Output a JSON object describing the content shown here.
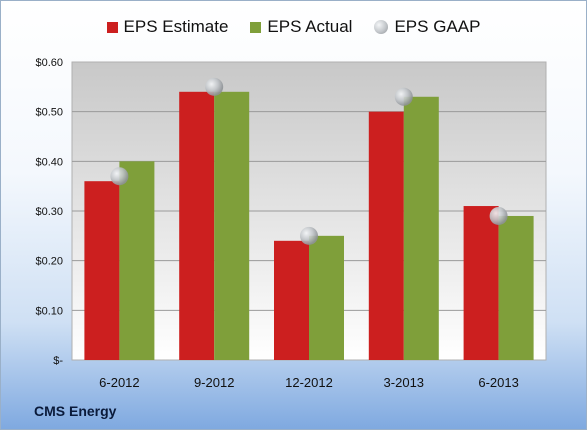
{
  "chart_data": {
    "type": "bar",
    "categories": [
      "6-2012",
      "9-2012",
      "12-2012",
      "3-2013",
      "6-2013"
    ],
    "series": [
      {
        "name": "EPS Estimate",
        "values": [
          0.36,
          0.54,
          0.24,
          0.5,
          0.31
        ],
        "color": "#cc1f1f"
      },
      {
        "name": "EPS Actual",
        "values": [
          0.4,
          0.54,
          0.25,
          0.53,
          0.29
        ],
        "color": "#7f9f3a"
      }
    ],
    "markers": {
      "name": "EPS GAAP",
      "values": [
        0.37,
        0.55,
        0.25,
        0.53,
        0.29
      ],
      "color": "#b8bcc0"
    },
    "y_ticks": [
      "$-",
      "$0.10",
      "$0.20",
      "$0.30",
      "$0.40",
      "$0.50",
      "$0.60"
    ],
    "ylim": [
      0,
      0.6
    ],
    "grid": true,
    "legend_position": "top"
  },
  "footer": {
    "company": "CMS Energy"
  }
}
